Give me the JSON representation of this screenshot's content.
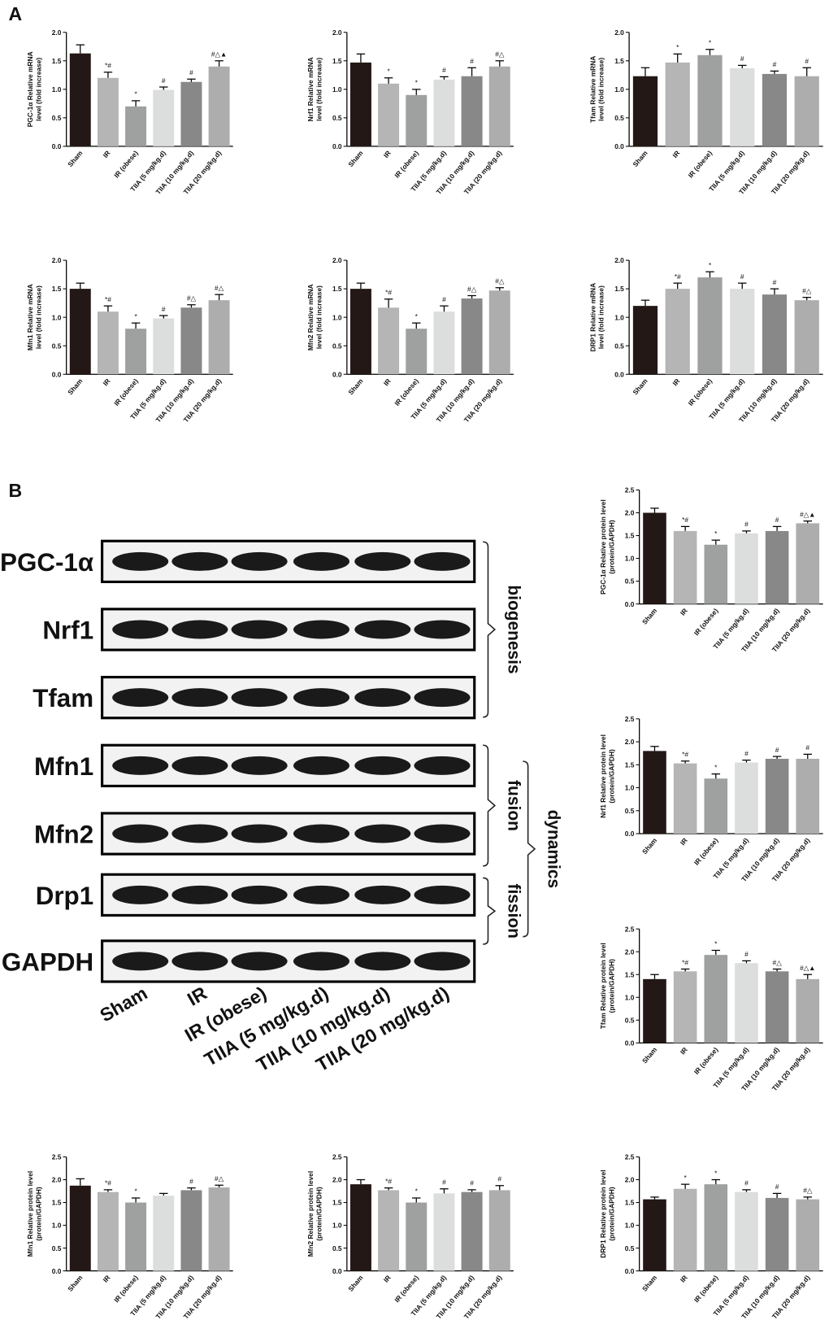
{
  "panels": [
    "A",
    "B"
  ],
  "blot": {
    "proteins": [
      "PGC-1α",
      "Nrf1",
      "Tfam",
      "Mfn1",
      "Mfn2",
      "Drp1",
      "GAPDH"
    ],
    "lanes": [
      "Sham",
      "IR",
      "IR (obese)",
      "TIIA (5 mg/kg.d)",
      "TIIA (10 mg/kg.d)",
      "TIIA (20 mg/kg.d)"
    ],
    "groups": [
      "biogenesis",
      "fusion",
      "fission",
      "dynamics"
    ]
  },
  "chart_data": [
    {
      "type": "bar",
      "ylabel": [
        "PGC-1α Relative mRNA",
        "level (fold increase)"
      ],
      "categories": [
        "Sham",
        "IR",
        "IR (obese)",
        "TIIA (5 mg/kg.d)",
        "TIIA (10 mg/kg.d)",
        "TIIA (20 mg/kg.d)"
      ],
      "values": [
        1.63,
        1.2,
        0.7,
        0.99,
        1.13,
        1.4
      ],
      "errors": [
        0.15,
        0.1,
        0.1,
        0.05,
        0.05,
        0.1
      ],
      "marks": [
        null,
        "*#",
        "*",
        "#",
        "#",
        "#△▲"
      ],
      "colors": [
        "#231815",
        "#b5b5b6",
        "#9fa0a0",
        "#dcdddd",
        "#888888",
        "#adadad"
      ],
      "ylim": [
        0,
        2
      ],
      "yticks": [
        {
          "value": 0,
          "label": "0.0"
        },
        0.5,
        {
          "value": 1,
          "label": "1.0"
        },
        1.5,
        {
          "value": 2,
          "label": "2.0"
        }
      ]
    },
    {
      "type": "bar",
      "ylabel": [
        "Nrf1 Relative mRNA",
        "level (fold increase)"
      ],
      "categories": [
        "Sham",
        "IR",
        "IR (obese)",
        "TIIA (5 mg/kg.d)",
        "TIIA (10 mg/kg.d)",
        "TIIA (20 mg/kg.d)"
      ],
      "values": [
        1.47,
        1.1,
        0.9,
        1.17,
        1.23,
        1.4
      ],
      "errors": [
        0.15,
        0.1,
        0.1,
        0.05,
        0.15,
        0.1
      ],
      "marks": [
        null,
        "*",
        "*",
        "#",
        "#",
        "#△"
      ],
      "colors": [
        "#231815",
        "#b5b5b6",
        "#9fa0a0",
        "#dcdddd",
        "#888888",
        "#adadad"
      ],
      "ylim": [
        0,
        2
      ],
      "yticks": [
        {
          "value": 0,
          "label": "0.0"
        },
        0.5,
        {
          "value": 1,
          "label": "1.0"
        },
        1.5,
        {
          "value": 2,
          "label": "2.0"
        }
      ]
    },
    {
      "type": "bar",
      "ylabel": [
        "Tfam Relative mRNA",
        "level (fold increase)"
      ],
      "categories": [
        "Sham",
        "IR",
        "IR (obese)",
        "TIIA (5 mg/kg.d)",
        "TIIA (10 mg/kg.d)",
        "TIIA (20 mg/kg.d)"
      ],
      "values": [
        1.23,
        1.47,
        1.6,
        1.37,
        1.27,
        1.23
      ],
      "errors": [
        0.15,
        0.15,
        0.1,
        0.05,
        0.05,
        0.15
      ],
      "marks": [
        null,
        "*",
        "*",
        "#",
        "#",
        "#"
      ],
      "colors": [
        "#231815",
        "#b5b5b6",
        "#9fa0a0",
        "#dcdddd",
        "#888888",
        "#adadad"
      ],
      "ylim": [
        0,
        2
      ],
      "yticks": [
        {
          "value": 0,
          "label": "0.0"
        },
        0.5,
        {
          "value": 1,
          "label": "1.0"
        },
        1.5,
        {
          "value": 2,
          "label": "2.0"
        }
      ]
    },
    {
      "type": "bar",
      "ylabel": [
        "Mfn1 Relative mRNA",
        "level (fold increase)"
      ],
      "categories": [
        "Sham",
        "IR",
        "IR (obese)",
        "TIIA (5 mg/kg.d)",
        "TIIA (10 mg/kg.d)",
        "TIIA (20 mg/kg.d)"
      ],
      "values": [
        1.5,
        1.1,
        0.8,
        0.98,
        1.17,
        1.3
      ],
      "errors": [
        0.1,
        0.1,
        0.1,
        0.05,
        0.05,
        0.1
      ],
      "marks": [
        null,
        "*#",
        "*",
        "#",
        "#△",
        "#△"
      ],
      "colors": [
        "#231815",
        "#b5b5b6",
        "#9fa0a0",
        "#dcdddd",
        "#888888",
        "#adadad"
      ],
      "ylim": [
        0,
        2
      ],
      "yticks": [
        {
          "value": 0,
          "label": "0.0"
        },
        0.5,
        {
          "value": 1,
          "label": "1.0"
        },
        1.5,
        {
          "value": 2,
          "label": "2.0"
        }
      ]
    },
    {
      "type": "bar",
      "ylabel": [
        "Mfn2 Relative mRNA",
        "level (fold increase)"
      ],
      "categories": [
        "Sham",
        "IR",
        "IR (obese)",
        "TIIA (5 mg/kg.d)",
        "TIIA (10 mg/kg.d)",
        "TIIA (20 mg/kg.d)"
      ],
      "values": [
        1.5,
        1.17,
        0.8,
        1.1,
        1.33,
        1.47
      ],
      "errors": [
        0.1,
        0.15,
        0.1,
        0.1,
        0.05,
        0.05
      ],
      "marks": [
        null,
        "*#",
        "*",
        "#",
        "#△",
        "#△"
      ],
      "colors": [
        "#231815",
        "#b5b5b6",
        "#9fa0a0",
        "#dcdddd",
        "#888888",
        "#adadad"
      ],
      "ylim": [
        0,
        2
      ],
      "yticks": [
        {
          "value": 0,
          "label": "0.0"
        },
        0.5,
        {
          "value": 1,
          "label": "1.0"
        },
        1.5,
        {
          "value": 2,
          "label": "2.0"
        }
      ]
    },
    {
      "type": "bar",
      "ylabel": [
        "DRP1 Relative mRNA",
        "level (fold increase)"
      ],
      "categories": [
        "Sham",
        "IR",
        "IR (obese)",
        "TIIA (5 mg/kg.d)",
        "TIIA (10 mg/kg.d)",
        "TIIA (20 mg/kg.d)"
      ],
      "values": [
        1.2,
        1.5,
        1.7,
        1.5,
        1.4,
        1.3
      ],
      "errors": [
        0.1,
        0.1,
        0.1,
        0.1,
        0.1,
        0.05
      ],
      "marks": [
        null,
        "*#",
        "*",
        "#",
        "#",
        "#△"
      ],
      "colors": [
        "#231815",
        "#b5b5b6",
        "#9fa0a0",
        "#dcdddd",
        "#888888",
        "#adadad"
      ],
      "ylim": [
        0,
        2
      ],
      "yticks": [
        {
          "value": 0,
          "label": "0.0"
        },
        0.5,
        {
          "value": 1,
          "label": "1.0"
        },
        1.5,
        {
          "value": 2,
          "label": "2.0"
        }
      ]
    },
    {
      "type": "bar",
      "ylabel": [
        "PGC-1α Relative protein level",
        "(protein/GAPDH)"
      ],
      "categories": [
        "Sham",
        "IR",
        "IR (obese)",
        "TIIA (5 mg/kg.d)",
        "TIIA (10 mg/kg.d)",
        "TIIA (20 mg/kg.d)"
      ],
      "values": [
        2.0,
        1.6,
        1.3,
        1.55,
        1.6,
        1.77
      ],
      "errors": [
        0.1,
        0.1,
        0.1,
        0.05,
        0.1,
        0.05
      ],
      "marks": [
        null,
        "*#",
        "*",
        "#",
        "#",
        "#△▲"
      ],
      "colors": [
        "#231815",
        "#b5b5b6",
        "#9fa0a0",
        "#dcdddd",
        "#888888",
        "#adadad"
      ],
      "ylim": [
        0,
        2.5
      ],
      "yticks": [
        {
          "value": 0,
          "label": "0.0"
        },
        0.5,
        {
          "value": 1,
          "label": "1.0"
        },
        1.5,
        {
          "value": 2,
          "label": "2.0"
        },
        2.5
      ]
    },
    {
      "type": "bar",
      "ylabel": [
        "Nrf1 Relative protein level",
        "(protein/GAPDH)"
      ],
      "categories": [
        "Sham",
        "IR",
        "IR (obese)",
        "TIIA (5 mg/kg.d)",
        "TIIA (10 mg/kg.d)",
        "TIIA (20 mg/kg.d)"
      ],
      "values": [
        1.8,
        1.53,
        1.2,
        1.55,
        1.63,
        1.63
      ],
      "errors": [
        0.1,
        0.05,
        0.1,
        0.05,
        0.05,
        0.1
      ],
      "marks": [
        null,
        "*#",
        "*",
        "#",
        "#",
        "#"
      ],
      "colors": [
        "#231815",
        "#b5b5b6",
        "#9fa0a0",
        "#dcdddd",
        "#888888",
        "#adadad"
      ],
      "ylim": [
        0,
        2.5
      ],
      "yticks": [
        {
          "value": 0,
          "label": "0.0"
        },
        0.5,
        {
          "value": 1,
          "label": "1.0"
        },
        1.5,
        {
          "value": 2,
          "label": "2.0"
        },
        2.5
      ]
    },
    {
      "type": "bar",
      "ylabel": [
        "Tfam Relative protein level",
        "(protein/GAPDH)"
      ],
      "categories": [
        "Sham",
        "IR",
        "IR (obese)",
        "TIIA (5 mg/kg.d)",
        "TIIA (10 mg/kg.d)",
        "TIIA (20 mg/kg.d)"
      ],
      "values": [
        1.4,
        1.57,
        1.93,
        1.75,
        1.57,
        1.4
      ],
      "errors": [
        0.1,
        0.05,
        0.1,
        0.05,
        0.05,
        0.1
      ],
      "marks": [
        null,
        "*#",
        "*",
        "#",
        "#△",
        "#△▲"
      ],
      "colors": [
        "#231815",
        "#b5b5b6",
        "#9fa0a0",
        "#dcdddd",
        "#888888",
        "#adadad"
      ],
      "ylim": [
        0,
        2.5
      ],
      "yticks": [
        {
          "value": 0,
          "label": "0.0"
        },
        0.5,
        {
          "value": 1,
          "label": "1.0"
        },
        1.5,
        {
          "value": 2,
          "label": "2.0"
        },
        2.5
      ]
    },
    {
      "type": "bar",
      "ylabel": [
        "Mfn1 Relative protein level",
        "(protein/GAPDH)"
      ],
      "categories": [
        "Sham",
        "IR",
        "IR (obese)",
        "TIIA (5 mg/kg.d)",
        "TIIA (10 mg/kg.d)",
        "TIIA (20 mg/kg.d)"
      ],
      "values": [
        1.87,
        1.73,
        1.5,
        1.65,
        1.77,
        1.83
      ],
      "errors": [
        0.15,
        0.05,
        0.1,
        0.05,
        0.05,
        0.05
      ],
      "marks": [
        null,
        "*#",
        "*",
        null,
        "#",
        "#△"
      ],
      "colors": [
        "#231815",
        "#b5b5b6",
        "#9fa0a0",
        "#dcdddd",
        "#888888",
        "#adadad"
      ],
      "ylim": [
        0,
        2.5
      ],
      "yticks": [
        {
          "value": 0,
          "label": "0.0"
        },
        0.5,
        {
          "value": 1,
          "label": "1.0"
        },
        1.5,
        {
          "value": 2,
          "label": "2.0"
        },
        2.5
      ]
    },
    {
      "type": "bar",
      "ylabel": [
        "Mfn2 Relative protein level",
        "(protein/GAPDH)"
      ],
      "categories": [
        "Sham",
        "IR",
        "IR (obese)",
        "TIIA (5 mg/kg.d)",
        "TIIA (10 mg/kg.d)",
        "TIIA (20 mg/kg.d)"
      ],
      "values": [
        1.9,
        1.77,
        1.5,
        1.7,
        1.73,
        1.77
      ],
      "errors": [
        0.1,
        0.05,
        0.1,
        0.1,
        0.05,
        0.1
      ],
      "marks": [
        null,
        "*#",
        "*",
        "#",
        "#",
        "#"
      ],
      "colors": [
        "#231815",
        "#b5b5b6",
        "#9fa0a0",
        "#dcdddd",
        "#888888",
        "#adadad"
      ],
      "ylim": [
        0,
        2.5
      ],
      "yticks": [
        {
          "value": 0,
          "label": "0.0"
        },
        0.5,
        {
          "value": 1,
          "label": "1.0"
        },
        1.5,
        {
          "value": 2,
          "label": "2.0"
        },
        2.5
      ]
    },
    {
      "type": "bar",
      "ylabel": [
        "DRP1 Relative protein level",
        "(protein/GAPDH)"
      ],
      "categories": [
        "Sham",
        "IR",
        "IR (obese)",
        "TIIA (5 mg/kg.d)",
        "TIIA (10 mg/kg.d)",
        "TIIA (20 mg/kg.d)"
      ],
      "values": [
        1.57,
        1.8,
        1.9,
        1.73,
        1.6,
        1.57
      ],
      "errors": [
        0.05,
        0.1,
        0.1,
        0.05,
        0.1,
        0.05
      ],
      "marks": [
        null,
        "*",
        "*",
        "#",
        "#",
        "#△"
      ],
      "colors": [
        "#231815",
        "#b5b5b6",
        "#9fa0a0",
        "#dcdddd",
        "#888888",
        "#adadad"
      ],
      "ylim": [
        0,
        2.5
      ],
      "yticks": [
        {
          "value": 0,
          "label": "0.0"
        },
        0.5,
        {
          "value": 1,
          "label": "1.0"
        },
        1.5,
        {
          "value": 2,
          "label": "2.0"
        },
        2.5
      ]
    }
  ]
}
